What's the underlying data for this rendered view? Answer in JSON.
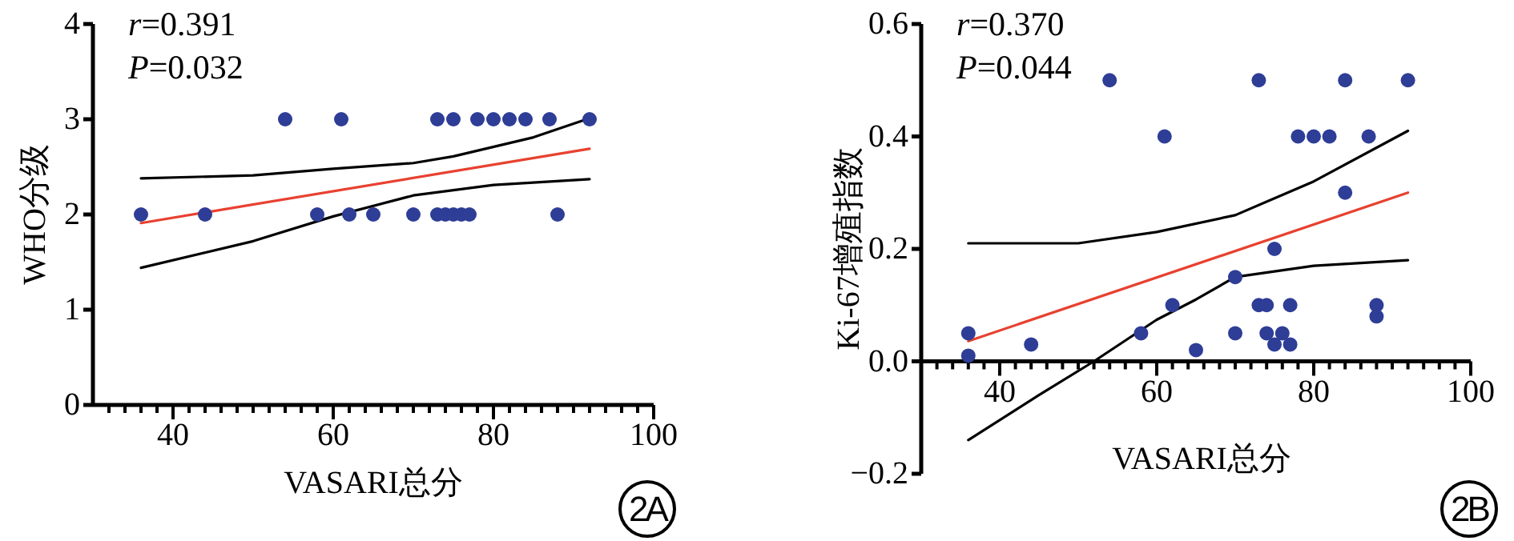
{
  "chart_data": [
    {
      "type": "scatter",
      "xlabel": "VASARI总分",
      "ylabel": "WHO分级",
      "annotations": [
        "r=0.391",
        "P=0.032",
        "2A"
      ],
      "xlim": [
        30,
        100
      ],
      "ylim": [
        0,
        4
      ],
      "xticks": [
        {
          "value": 32,
          "label": null
        },
        {
          "value": 34,
          "label": null
        },
        {
          "value": 36,
          "label": null
        },
        {
          "value": 38,
          "label": null
        },
        40,
        {
          "value": 42,
          "label": null
        },
        {
          "value": 44,
          "label": null
        },
        {
          "value": 46,
          "label": null
        },
        {
          "value": 48,
          "label": null
        },
        {
          "value": 50,
          "label": null
        },
        {
          "value": 52,
          "label": null
        },
        {
          "value": 54,
          "label": null
        },
        {
          "value": 56,
          "label": null
        },
        {
          "value": 58,
          "label": null
        },
        60,
        {
          "value": 62,
          "label": null
        },
        {
          "value": 64,
          "label": null
        },
        {
          "value": 66,
          "label": null
        },
        {
          "value": 68,
          "label": null
        },
        {
          "value": 70,
          "label": null
        },
        {
          "value": 72,
          "label": null
        },
        {
          "value": 74,
          "label": null
        },
        {
          "value": 76,
          "label": null
        },
        {
          "value": 78,
          "label": null
        },
        80,
        {
          "value": 82,
          "label": null
        },
        {
          "value": 84,
          "label": null
        },
        {
          "value": 86,
          "label": null
        },
        {
          "value": 88,
          "label": null
        },
        {
          "value": 90,
          "label": null
        },
        {
          "value": 92,
          "label": null
        },
        {
          "value": 94,
          "label": null
        },
        {
          "value": 96,
          "label": null
        },
        {
          "value": 98,
          "label": null
        },
        100
      ],
      "yticks": [
        0,
        1,
        2,
        3,
        4
      ],
      "grid": false,
      "series": [
        {
          "marker": "circle",
          "color": "#2e3d96",
          "x": [
            54,
            61,
            73,
            75,
            78,
            80,
            82,
            84,
            87,
            92,
            36,
            44,
            58,
            62,
            65,
            70,
            73,
            74,
            75,
            76,
            77,
            88
          ],
          "values": [
            3,
            3,
            3,
            3,
            3,
            3,
            3,
            3,
            3,
            3,
            2,
            2,
            2,
            2,
            2,
            2,
            2,
            2,
            2,
            2,
            2,
            2
          ]
        },
        {
          "type": "line",
          "color": "#e8412f",
          "x": [
            36,
            92
          ],
          "values": [
            1.91,
            2.69
          ]
        },
        {
          "type": "line",
          "color": "#000000",
          "x": [
            36,
            50,
            60,
            70,
            75,
            85,
            92
          ],
          "values": [
            2.38,
            2.41,
            2.48,
            2.54,
            2.61,
            2.81,
            3.01
          ]
        },
        {
          "type": "line",
          "color": "#000000",
          "x": [
            36,
            50,
            60,
            70,
            80,
            92
          ],
          "values": [
            1.44,
            1.72,
            1.98,
            2.2,
            2.31,
            2.37
          ]
        }
      ]
    },
    {
      "type": "scatter",
      "xlabel": "VASARI总分",
      "ylabel": "Ki-67增殖指数",
      "annotations": [
        "r=0.370",
        "P=0.044",
        "2B"
      ],
      "xlim": [
        30,
        100
      ],
      "ylim": [
        -0.2,
        0.6
      ],
      "xticks": [
        {
          "value": 32,
          "label": null
        },
        {
          "value": 34,
          "label": null
        },
        {
          "value": 36,
          "label": null
        },
        {
          "value": 38,
          "label": null
        },
        40,
        {
          "value": 42,
          "label": null
        },
        {
          "value": 44,
          "label": null
        },
        {
          "value": 46,
          "label": null
        },
        {
          "value": 48,
          "label": null
        },
        {
          "value": 50,
          "label": null
        },
        {
          "value": 52,
          "label": null
        },
        {
          "value": 54,
          "label": null
        },
        {
          "value": 56,
          "label": null
        },
        {
          "value": 58,
          "label": null
        },
        60,
        {
          "value": 62,
          "label": null
        },
        {
          "value": 64,
          "label": null
        },
        {
          "value": 66,
          "label": null
        },
        {
          "value": 68,
          "label": null
        },
        {
          "value": 70,
          "label": null
        },
        {
          "value": 72,
          "label": null
        },
        {
          "value": 74,
          "label": null
        },
        {
          "value": 76,
          "label": null
        },
        {
          "value": 78,
          "label": null
        },
        80,
        {
          "value": 82,
          "label": null
        },
        {
          "value": 84,
          "label": null
        },
        {
          "value": 86,
          "label": null
        },
        {
          "value": 88,
          "label": null
        },
        {
          "value": 90,
          "label": null
        },
        {
          "value": 92,
          "label": null
        },
        {
          "value": 94,
          "label": null
        },
        {
          "value": 96,
          "label": null
        },
        {
          "value": 98,
          "label": null
        },
        100
      ],
      "yticks": [
        {
          "value": -0.2,
          "label": "−0.2"
        },
        {
          "value": 0,
          "label": "0.0"
        },
        0.2,
        0.4,
        0.6
      ],
      "grid": false,
      "series": [
        {
          "marker": "circle",
          "color": "#2e3d96",
          "x": [
            54,
            73,
            84,
            92,
            61,
            78,
            80,
            82,
            87,
            84,
            75,
            70,
            62,
            73,
            74,
            77,
            88,
            88,
            36,
            36,
            44,
            58,
            65,
            70,
            74,
            76,
            75,
            77
          ],
          "values": [
            0.5,
            0.5,
            0.5,
            0.5,
            0.4,
            0.4,
            0.4,
            0.4,
            0.4,
            0.3,
            0.2,
            0.15,
            0.1,
            0.1,
            0.1,
            0.1,
            0.1,
            0.08,
            0.05,
            0.01,
            0.03,
            0.05,
            0.02,
            0.05,
            0.05,
            0.05,
            0.03,
            0.03
          ]
        },
        {
          "type": "line",
          "color": "#e8412f",
          "x": [
            36,
            92
          ],
          "values": [
            0.036,
            0.3
          ]
        },
        {
          "type": "line",
          "color": "#000000",
          "x": [
            36,
            50,
            60,
            70,
            80,
            92
          ],
          "values": [
            0.21,
            0.21,
            0.23,
            0.26,
            0.32,
            0.41
          ]
        },
        {
          "type": "line",
          "color": "#000000",
          "x": [
            36,
            45,
            52,
            60,
            65,
            70,
            80,
            92
          ],
          "values": [
            -0.14,
            -0.06,
            0.0,
            0.074,
            0.11,
            0.15,
            0.17,
            0.18
          ]
        }
      ]
    }
  ]
}
